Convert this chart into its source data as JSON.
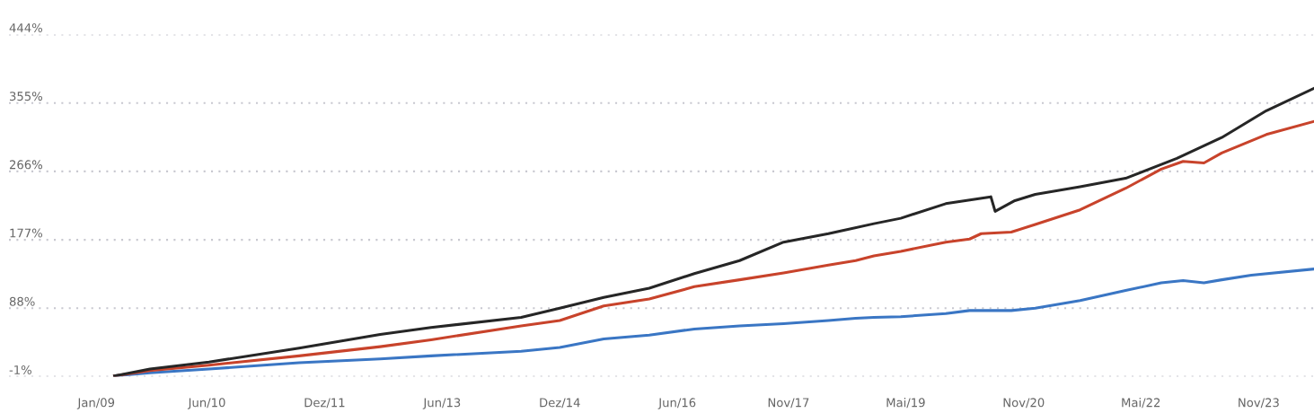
{
  "chart_data": {
    "type": "line",
    "xlim": [
      "2007-12-05",
      "2024-07-30"
    ],
    "xticks": [
      {
        "value": "2009-01-15",
        "label": "Jan/09"
      },
      {
        "value": "2010-06-15",
        "label": "Jun/10"
      },
      {
        "value": "2011-12-15",
        "label": "Dez/11"
      },
      {
        "value": "2013-06-15",
        "label": "Jun/13"
      },
      {
        "value": "2014-12-15",
        "label": "Dez/14"
      },
      {
        "value": "2016-06-15",
        "label": "Jun/16"
      },
      {
        "value": "2017-11-15",
        "label": "Nov/17"
      },
      {
        "value": "2019-05-15",
        "label": "Mai/19"
      },
      {
        "value": "2020-11-15",
        "label": "Nov/20"
      },
      {
        "value": "2022-05-15",
        "label": "Mai/22"
      },
      {
        "value": "2023-11-15",
        "label": "Nov/23"
      }
    ],
    "ylim": [
      -1,
      444
    ],
    "yticks": [
      {
        "value": -1,
        "label": "-1%"
      },
      {
        "value": 88,
        "label": "88%"
      },
      {
        "value": 177,
        "label": "177%"
      },
      {
        "value": 266,
        "label": "266%"
      },
      {
        "value": 355,
        "label": "355%"
      },
      {
        "value": 444,
        "label": "444%"
      }
    ],
    "grid": "y",
    "marker": "none",
    "line_style": "solid",
    "series": [
      {
        "color": "#3a76c4",
        "x": [
          "2009-04-10",
          "2009-09-22",
          "2010-06-24",
          "2011-08-18",
          "2012-08-30",
          "2013-04-24",
          "2014-06-18",
          "2014-12-15",
          "2015-07-08",
          "2016-02-05",
          "2016-09-02",
          "2017-04-01",
          "2017-10-23",
          "2018-05-20",
          "2018-09-24",
          "2018-12-18",
          "2019-04-22",
          "2019-11-18",
          "2020-03-08",
          "2020-09-18",
          "2021-01-08",
          "2021-08-05",
          "2022-03-05",
          "2022-08-18",
          "2022-11-28",
          "2023-03-05",
          "2023-05-27",
          "2023-10-12",
          "2024-07-30"
        ],
        "values": [
          0,
          4,
          9,
          17,
          22,
          26,
          32,
          37,
          48,
          53,
          61,
          65,
          68,
          72,
          75,
          76,
          77,
          81,
          85,
          85,
          88,
          98,
          111,
          121,
          124,
          121,
          125,
          131,
          139
        ]
      },
      {
        "color": "#c8432b",
        "x": [
          "2009-04-10",
          "2009-09-22",
          "2010-06-24",
          "2011-08-18",
          "2012-08-30",
          "2013-04-24",
          "2014-06-18",
          "2014-12-15",
          "2015-07-08",
          "2016-02-05",
          "2016-09-02",
          "2017-04-01",
          "2017-10-23",
          "2018-05-20",
          "2018-09-24",
          "2018-12-18",
          "2019-04-22",
          "2019-11-18",
          "2020-03-08",
          "2020-05-01",
          "2020-09-18",
          "2021-01-08",
          "2021-08-05",
          "2022-03-05",
          "2022-08-18",
          "2022-11-28",
          "2023-03-05",
          "2023-05-27",
          "2023-12-21",
          "2024-07-30"
        ],
        "values": [
          0,
          7,
          14,
          26,
          38,
          47,
          65,
          72,
          91,
          100,
          116,
          125,
          134,
          144,
          150,
          156,
          162,
          174,
          178,
          185,
          187,
          197,
          216,
          244,
          269,
          279,
          277,
          290,
          314,
          331
        ]
      },
      {
        "color": "#262626",
        "x": [
          "2009-04-10",
          "2009-09-22",
          "2010-06-24",
          "2011-08-18",
          "2012-08-30",
          "2013-04-24",
          "2014-06-18",
          "2014-12-15",
          "2015-07-08",
          "2016-02-05",
          "2016-09-02",
          "2017-04-01",
          "2017-10-23",
          "2018-05-20",
          "2018-12-18",
          "2019-04-22",
          "2019-11-18",
          "2020-06-15",
          "2020-07-05",
          "2020-10-05",
          "2021-01-08",
          "2021-08-05",
          "2022-03-05",
          "2022-10-30",
          "2023-05-27",
          "2023-12-21",
          "2024-07-30"
        ],
        "values": [
          0,
          9,
          18,
          36,
          54,
          63,
          76,
          88,
          102,
          114,
          133,
          150,
          174,
          185,
          198,
          205,
          224,
          233,
          214,
          228,
          236,
          246,
          257,
          283,
          310,
          345,
          374
        ]
      }
    ]
  }
}
